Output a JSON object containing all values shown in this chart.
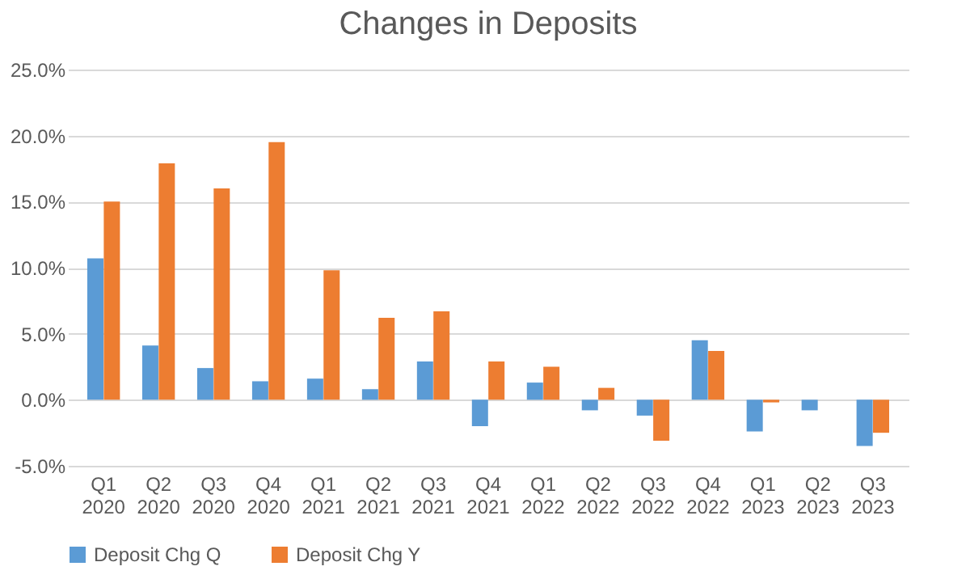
{
  "chart_data": {
    "type": "bar",
    "title": "Changes in Deposits",
    "categories": [
      "Q1 2020",
      "Q2 2020",
      "Q3 2020",
      "Q4 2020",
      "Q1 2021",
      "Q2 2021",
      "Q3 2021",
      "Q4 2021",
      "Q1 2022",
      "Q2 2022",
      "Q3 2022",
      "Q4 2022",
      "Q1 2023",
      "Q2 2023",
      "Q3 2023"
    ],
    "series": [
      {
        "name": "Deposit Chg Q",
        "color": "#5b9bd5",
        "values": [
          10.7,
          4.1,
          2.4,
          1.4,
          1.6,
          0.8,
          2.9,
          -2.0,
          1.3,
          -0.8,
          -1.2,
          4.5,
          -2.4,
          -0.8,
          -3.5
        ]
      },
      {
        "name": "Deposit Chg Y",
        "color": "#ed7d31",
        "values": [
          15.0,
          17.9,
          16.0,
          19.5,
          9.8,
          6.2,
          6.7,
          2.9,
          2.5,
          0.9,
          -3.1,
          3.7,
          -0.2,
          null,
          -2.5
        ]
      }
    ],
    "ylim": [
      -5,
      25
    ],
    "yticks": [
      {
        "value": -5,
        "label": "-5.0%"
      },
      {
        "value": 0,
        "label": "0.0%"
      },
      {
        "value": 5,
        "label": "5.0%"
      },
      {
        "value": 10,
        "label": "10.0%"
      },
      {
        "value": 15,
        "label": "15.0%"
      },
      {
        "value": 20,
        "label": "20.0%"
      },
      {
        "value": 25,
        "label": "25.0%"
      }
    ],
    "grid": "y",
    "legend": "bottom"
  }
}
